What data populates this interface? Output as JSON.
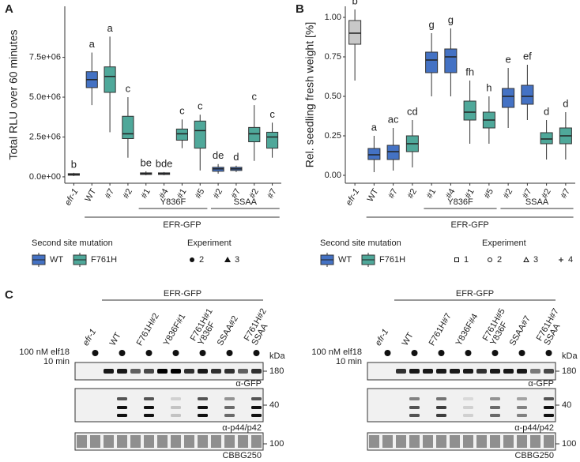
{
  "panel_labels": [
    "A",
    "B",
    "C"
  ],
  "chart_data": [
    {
      "type": "box",
      "y_label": "Total RLU over 60 minutes",
      "ylim": [
        -400000,
        10700000
      ],
      "yticks": [
        {
          "value": 0,
          "label": "0.0e+00"
        },
        {
          "value": 2500000,
          "label": "2.5e+06"
        },
        {
          "value": 5000000,
          "label": "5.0e+06"
        },
        {
          "value": 7500000,
          "label": "7.5e+06"
        }
      ],
      "categories": [
        "efr-1",
        "WT",
        "#7",
        "#2",
        "#1",
        "#4",
        "#1",
        "#5",
        "#2",
        "#7",
        "#2",
        "#7"
      ],
      "colors": [
        "#c8c8c8",
        "#4472c4",
        "#4fa89a",
        "#4fa89a",
        "#4472c4",
        "#4472c4",
        "#4fa89a",
        "#4fa89a",
        "#4472c4",
        "#4472c4",
        "#4fa89a",
        "#4fa89a"
      ],
      "boxes": [
        {
          "low": 50000,
          "q1": 100000,
          "median": 150000,
          "q3": 200000,
          "high": 250000
        },
        {
          "low": 4500000,
          "q1": 5600000,
          "median": 6100000,
          "q3": 6600000,
          "high": 7800000
        },
        {
          "low": 2800000,
          "q1": 5300000,
          "median": 6300000,
          "q3": 6900000,
          "high": 8800000
        },
        {
          "low": 1200000,
          "q1": 2400000,
          "median": 2700000,
          "q3": 3800000,
          "high": 5000000
        },
        {
          "low": 100000,
          "q1": 150000,
          "median": 200000,
          "q3": 250000,
          "high": 350000
        },
        {
          "low": 100000,
          "q1": 150000,
          "median": 200000,
          "q3": 250000,
          "high": 300000
        },
        {
          "low": 1800000,
          "q1": 2300000,
          "median": 2700000,
          "q3": 3000000,
          "high": 3600000
        },
        {
          "low": 400000,
          "q1": 1800000,
          "median": 2900000,
          "q3": 3500000,
          "high": 3900000
        },
        {
          "low": 200000,
          "q1": 350000,
          "median": 500000,
          "q3": 600000,
          "high": 800000
        },
        {
          "low": 300000,
          "q1": 400000,
          "median": 500000,
          "q3": 600000,
          "high": 700000
        },
        {
          "low": 1000000,
          "q1": 2200000,
          "median": 2700000,
          "q3": 3100000,
          "high": 4500000
        },
        {
          "low": 1200000,
          "q1": 1800000,
          "median": 2500000,
          "q3": 2800000,
          "high": 3400000
        }
      ],
      "letters": [
        "b",
        "a",
        "a",
        "c",
        "be",
        "bde",
        "c",
        "c",
        "de",
        "d",
        "c",
        "c"
      ],
      "groups": [
        "Y836F",
        "SSAA"
      ],
      "construct": "EFR-GFP",
      "legend": {
        "fill_title": "Second site mutation",
        "fill": [
          {
            "name": "WT",
            "color": "#4472c4"
          },
          {
            "name": "F761H",
            "color": "#4fa89a"
          }
        ],
        "shape_title": "Experiment",
        "shapes": [
          "2",
          "3"
        ]
      }
    },
    {
      "type": "box",
      "y_label": "Rel. seedling fresh weight [%]",
      "ylim": [
        -0.05,
        1.07
      ],
      "yticks": [
        {
          "value": 0,
          "label": "0.00"
        },
        0.25,
        {
          "value": 0.5,
          "label": "0.50"
        },
        0.75,
        {
          "value": 1,
          "label": "1.00"
        }
      ],
      "categories": [
        "efr-1",
        "WT",
        "#7",
        "#2",
        "#1",
        "#4",
        "#1",
        "#5",
        "#2",
        "#7",
        "#2",
        "#7"
      ],
      "colors": [
        "#c8c8c8",
        "#4472c4",
        "#4472c4",
        "#4fa89a",
        "#4472c4",
        "#4472c4",
        "#4fa89a",
        "#4fa89a",
        "#4472c4",
        "#4472c4",
        "#4fa89a",
        "#4fa89a"
      ],
      "boxes": [
        {
          "low": 0.6,
          "q1": 0.83,
          "median": 0.9,
          "q3": 0.98,
          "high": 1.05
        },
        {
          "low": 0.02,
          "q1": 0.1,
          "median": 0.13,
          "q3": 0.17,
          "high": 0.25
        },
        {
          "low": 0.03,
          "q1": 0.1,
          "median": 0.15,
          "q3": 0.19,
          "high": 0.3
        },
        {
          "low": 0.05,
          "q1": 0.15,
          "median": 0.2,
          "q3": 0.25,
          "high": 0.35
        },
        {
          "low": 0.5,
          "q1": 0.65,
          "median": 0.73,
          "q3": 0.78,
          "high": 0.9
        },
        {
          "low": 0.5,
          "q1": 0.65,
          "median": 0.75,
          "q3": 0.8,
          "high": 0.93
        },
        {
          "low": 0.2,
          "q1": 0.35,
          "median": 0.4,
          "q3": 0.47,
          "high": 0.6
        },
        {
          "low": 0.2,
          "q1": 0.3,
          "median": 0.35,
          "q3": 0.4,
          "high": 0.5
        },
        {
          "low": 0.3,
          "q1": 0.43,
          "median": 0.5,
          "q3": 0.55,
          "high": 0.68
        },
        {
          "low": 0.35,
          "q1": 0.45,
          "median": 0.5,
          "q3": 0.57,
          "high": 0.7
        },
        {
          "low": 0.1,
          "q1": 0.2,
          "median": 0.23,
          "q3": 0.27,
          "high": 0.35
        },
        {
          "low": 0.1,
          "q1": 0.2,
          "median": 0.25,
          "q3": 0.3,
          "high": 0.4
        }
      ],
      "letters": [
        "b",
        "a",
        "ac",
        "cd",
        "g",
        "g",
        "fh",
        "h",
        "e",
        "ef",
        "d",
        "d"
      ],
      "groups": [
        "Y836F",
        "SSAA"
      ],
      "construct": "EFR-GFP",
      "legend": {
        "fill_title": "Second site mutation",
        "fill": [
          {
            "name": "WT",
            "color": "#4472c4"
          },
          {
            "name": "F761H",
            "color": "#4fa89a"
          }
        ],
        "shape_title": "Experiment",
        "shapes": [
          "1",
          "2",
          "3",
          "4"
        ]
      }
    }
  ],
  "panel_c": {
    "blots": [
      {
        "construct": "EFR-GFP",
        "lanes": [
          [
            "efr-1"
          ],
          [
            "WT"
          ],
          [
            "F761H#2"
          ],
          [
            "Y836F#1"
          ],
          [
            "Y836F",
            "F761H#1"
          ],
          [
            "SSAA#2"
          ],
          [
            "SSAA",
            "F761H#2"
          ]
        ],
        "treatment": [
          "100 nM elf18",
          "10 min"
        ],
        "unit": "kDa",
        "markers": [
          180,
          40,
          100
        ],
        "antibodies": [
          "α-GFP",
          "α-p44/p42",
          "CBBG250"
        ]
      },
      {
        "construct": "EFR-GFP",
        "lanes": [
          [
            "efr-1"
          ],
          [
            "WT"
          ],
          [
            "F761H#7"
          ],
          [
            "Y836F#4"
          ],
          [
            "Y836F",
            "F761H#5"
          ],
          [
            "SSAA#7"
          ],
          [
            "SSAA",
            "F761H#7"
          ]
        ],
        "treatment": [
          "100 nM elf18",
          "10 min"
        ],
        "unit": "kDa",
        "markers": [
          180,
          40,
          100
        ],
        "antibodies": [
          "α-GFP",
          "α-p44/p42",
          "CBBG250"
        ]
      }
    ]
  }
}
